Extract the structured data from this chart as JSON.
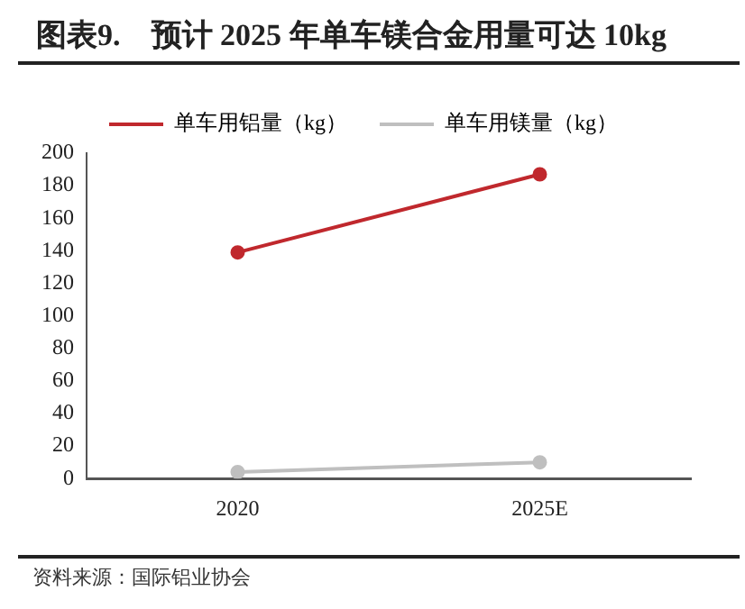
{
  "chart_data": {
    "type": "line",
    "title": "图表9.　预计 2025 年单车镁合金用量可达 10kg",
    "categories": [
      "2020",
      "2025E"
    ],
    "series": [
      {
        "name": "单车用铝量（kg）",
        "color": "#c0282d",
        "values": [
          139,
          187
        ]
      },
      {
        "name": "单车用镁量（kg）",
        "color": "#bfbfbf",
        "values": [
          4,
          10
        ]
      }
    ],
    "ylim": [
      0,
      200
    ],
    "yticks": [
      0,
      20,
      40,
      60,
      80,
      100,
      120,
      140,
      160,
      180,
      200
    ],
    "grid": false,
    "legend": "top",
    "marker": "circle",
    "line_style": "solid",
    "annotations": [
      "资料来源：国际铝业协会"
    ]
  }
}
